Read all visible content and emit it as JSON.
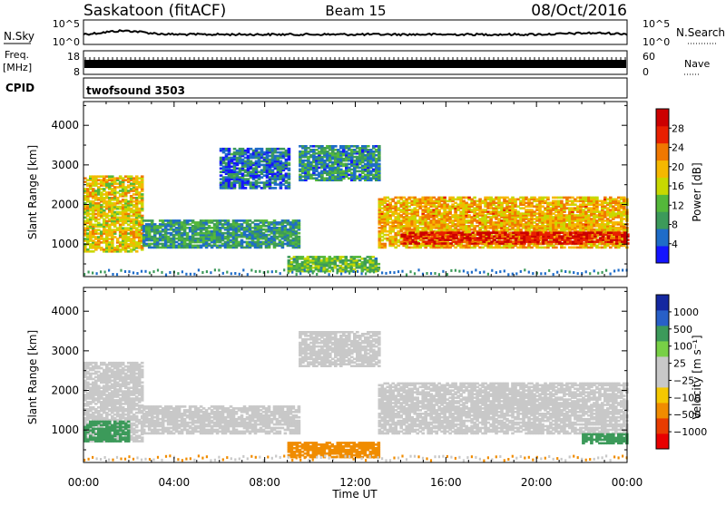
{
  "header": {
    "station": "Saskatoon (fitACF)",
    "beam": "Beam 15",
    "date": "08/Oct/2016"
  },
  "strips": {
    "noise": {
      "left_label": "N.Sky",
      "right_label": "N.Search",
      "ticks_left": [
        "10^5",
        "10^0"
      ],
      "ticks_right": [
        "10^5",
        "10^0"
      ]
    },
    "freq": {
      "left_label_1": "Freq.",
      "left_label_2": "[MHz]",
      "right_label": "Nave",
      "ticks_left": [
        "18",
        "8"
      ],
      "ticks_right": [
        "60",
        "0"
      ]
    },
    "cpid": {
      "left_label": "CPID",
      "program": "twofsound 3503"
    }
  },
  "colors": {
    "power_scale": [
      "#1414ff",
      "#1e6cc8",
      "#3c9a5a",
      "#54b83a",
      "#c8d800",
      "#f5b800",
      "#f07800",
      "#e82000",
      "#cc0000"
    ],
    "velocity_scale": [
      "#1428a0",
      "#2860c8",
      "#3c9a5a",
      "#78d046",
      "#c8c8c8",
      "#c8c8c8",
      "#f5c800",
      "#f08c00",
      "#e83c00",
      "#e80000"
    ]
  },
  "chart_data": [
    {
      "type": "heatmap",
      "name": "power",
      "ylabel": "Slant Range [km]",
      "xlabel": "Time UT",
      "x_ticks": [
        "00:00",
        "04:00",
        "08:00",
        "12:00",
        "16:00",
        "20:00",
        "00:00"
      ],
      "x_range_hours": [
        0,
        24
      ],
      "y_ticks": [
        1000,
        2000,
        3000,
        4000
      ],
      "y_range_km": [
        180,
        4600
      ],
      "colorbar": {
        "label": "Power [dB]",
        "ticks": [
          4,
          8,
          12,
          16,
          20,
          24,
          28
        ],
        "range": [
          0,
          32
        ]
      },
      "regions": [
        {
          "t": [
            0.0,
            2.6
          ],
          "r": [
            800,
            2700
          ],
          "level": 18
        },
        {
          "t": [
            2.6,
            9.5
          ],
          "r": [
            900,
            1600
          ],
          "level": 9
        },
        {
          "t": [
            6.0,
            9.0
          ],
          "r": [
            2400,
            3400
          ],
          "level": 6
        },
        {
          "t": [
            9.0,
            13.0
          ],
          "r": [
            300,
            700
          ],
          "level": 12
        },
        {
          "t": [
            9.5,
            13.0
          ],
          "r": [
            2600,
            3500
          ],
          "level": 8
        },
        {
          "t": [
            13.0,
            24.0
          ],
          "r": [
            900,
            2200
          ],
          "level": 20
        },
        {
          "t": [
            14.0,
            24.0
          ],
          "r": [
            1000,
            1300
          ],
          "level": 28
        }
      ]
    },
    {
      "type": "heatmap",
      "name": "velocity",
      "ylabel": "Slant Range [km]",
      "xlabel": "Time UT",
      "x_ticks": [
        "00:00",
        "04:00",
        "08:00",
        "12:00",
        "16:00",
        "20:00",
        "00:00"
      ],
      "x_range_hours": [
        0,
        24
      ],
      "y_ticks": [
        1000,
        2000,
        3000,
        4000
      ],
      "y_range_km": [
        180,
        4600
      ],
      "colorbar": {
        "label": "Velocity [m s⁻¹]",
        "ticks": [
          "1000",
          "500",
          "100",
          "25",
          "−25",
          "−100",
          "−500",
          "−1000"
        ]
      },
      "regions": [
        {
          "t": [
            0.0,
            2.6
          ],
          "r": [
            700,
            2700
          ],
          "level": 0
        },
        {
          "t": [
            0.0,
            2.0
          ],
          "r": [
            700,
            1200
          ],
          "level": 150
        },
        {
          "t": [
            2.6,
            9.5
          ],
          "r": [
            900,
            1600
          ],
          "level": 0
        },
        {
          "t": [
            9.5,
            13.0
          ],
          "r": [
            2600,
            3500
          ],
          "level": 0
        },
        {
          "t": [
            9.0,
            13.0
          ],
          "r": [
            300,
            700
          ],
          "level": -200
        },
        {
          "t": [
            13.0,
            24.0
          ],
          "r": [
            900,
            2200
          ],
          "level": 0
        },
        {
          "t": [
            22.0,
            24.0
          ],
          "r": [
            650,
            900
          ],
          "level": 200
        }
      ]
    }
  ]
}
